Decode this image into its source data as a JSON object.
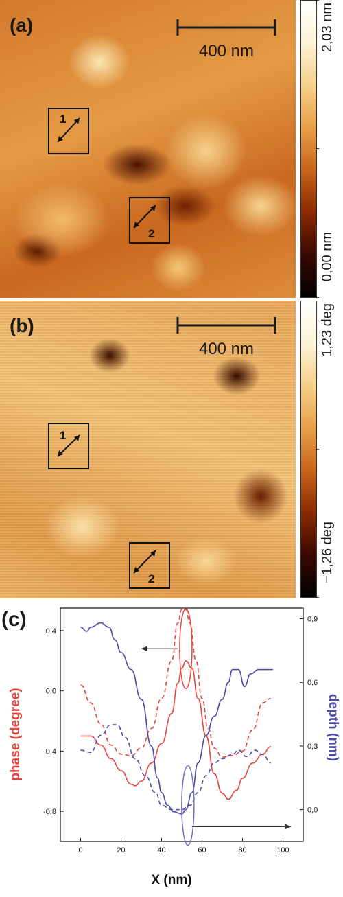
{
  "panels": {
    "a": {
      "label": "(a)",
      "scale_bar": "400 nm",
      "colorbar_max": "2,03 nm",
      "colorbar_min": "0,00 nm",
      "regions": [
        "1",
        "2"
      ]
    },
    "b": {
      "label": "(b)",
      "scale_bar": "400 nm",
      "colorbar_max": "1,23 deg",
      "colorbar_min": "−1,26 deg",
      "regions": [
        "1",
        "2"
      ]
    },
    "c": {
      "label": "(c)"
    }
  },
  "colors": {
    "phase": "#e8453c",
    "depth": "#4a4aa8",
    "colormap": [
      "#000000",
      "#3a0900",
      "#8a2a00",
      "#c8641a",
      "#e8a048",
      "#f5d08a",
      "#fdf3d6",
      "#ffffff"
    ]
  },
  "chart_data": {
    "type": "line",
    "xlabel": "X (nm)",
    "ylabel_left": "phase (degree)",
    "ylabel_right": "depth (nm)",
    "xlim": [
      -10,
      110
    ],
    "ylim_left": [
      -1.0,
      0.55
    ],
    "ylim_right": [
      -0.15,
      0.95
    ],
    "xticks": [
      "0",
      "20",
      "40",
      "60",
      "80",
      "100"
    ],
    "yticks_left": [
      "-0,8",
      "-0,4",
      "0,0",
      "0,4"
    ],
    "yticks_left_values": [
      -0.8,
      -0.4,
      0.0,
      0.4
    ],
    "yticks_right": [
      "0,0",
      "0,3",
      "0,6",
      "0,9"
    ],
    "yticks_right_values": [
      0.0,
      0.3,
      0.6,
      0.9
    ],
    "series": [
      {
        "axis": "left",
        "color": "#e8453c",
        "dashed": false,
        "x": [
          0,
          5,
          10,
          15,
          20,
          25,
          27,
          30,
          35,
          40,
          45,
          48,
          50,
          52,
          55,
          58,
          62,
          66,
          70,
          73,
          77,
          80,
          85,
          90,
          94
        ],
        "y": [
          -0.3,
          -0.3,
          -0.36,
          -0.45,
          -0.53,
          -0.62,
          -0.63,
          -0.6,
          -0.48,
          -0.35,
          -0.15,
          0.05,
          0.15,
          0.2,
          0.15,
          -0.05,
          -0.3,
          -0.55,
          -0.68,
          -0.72,
          -0.66,
          -0.58,
          -0.48,
          -0.42,
          -0.37
        ]
      },
      {
        "axis": "left",
        "color": "#e8453c",
        "dashed": true,
        "x": [
          0,
          5,
          10,
          15,
          20,
          25,
          30,
          35,
          40,
          45,
          48,
          50,
          52,
          54,
          57,
          60,
          63,
          66,
          70,
          75,
          80,
          85,
          90,
          94
        ],
        "y": [
          0.04,
          -0.08,
          -0.22,
          -0.36,
          -0.42,
          -0.43,
          -0.38,
          -0.25,
          -0.05,
          0.2,
          0.45,
          0.54,
          0.54,
          0.45,
          0.2,
          -0.05,
          -0.25,
          -0.38,
          -0.44,
          -0.43,
          -0.4,
          -0.26,
          -0.08,
          -0.05
        ]
      },
      {
        "axis": "right",
        "color": "#4a4aa8",
        "dashed": false,
        "x": [
          0,
          3,
          5,
          10,
          14,
          17,
          20,
          25,
          30,
          35,
          38,
          40,
          43,
          46,
          50,
          52,
          55,
          58,
          62,
          66,
          70,
          73,
          75,
          78,
          81,
          84,
          88,
          92,
          95
        ],
        "y": [
          0.86,
          0.84,
          0.86,
          0.88,
          0.86,
          0.8,
          0.74,
          0.66,
          0.52,
          0.3,
          0.15,
          0.08,
          0.02,
          -0.01,
          -0.02,
          0.0,
          0.08,
          0.22,
          0.35,
          0.44,
          0.52,
          0.6,
          0.66,
          0.66,
          0.58,
          0.64,
          0.66,
          0.66,
          0.66
        ]
      },
      {
        "axis": "right",
        "color": "#4a4aa8",
        "dashed": true,
        "x": [
          0,
          5,
          10,
          15,
          18,
          22,
          27,
          32,
          37,
          40,
          45,
          50,
          54,
          58,
          62,
          66,
          70,
          75,
          78,
          82,
          86,
          90,
          94
        ],
        "y": [
          0.28,
          0.27,
          0.35,
          0.4,
          0.4,
          0.34,
          0.24,
          0.16,
          0.08,
          0.02,
          0.0,
          0.0,
          0.02,
          0.08,
          0.16,
          0.22,
          0.24,
          0.26,
          0.28,
          0.25,
          0.28,
          0.26,
          0.22
        ]
      }
    ]
  }
}
